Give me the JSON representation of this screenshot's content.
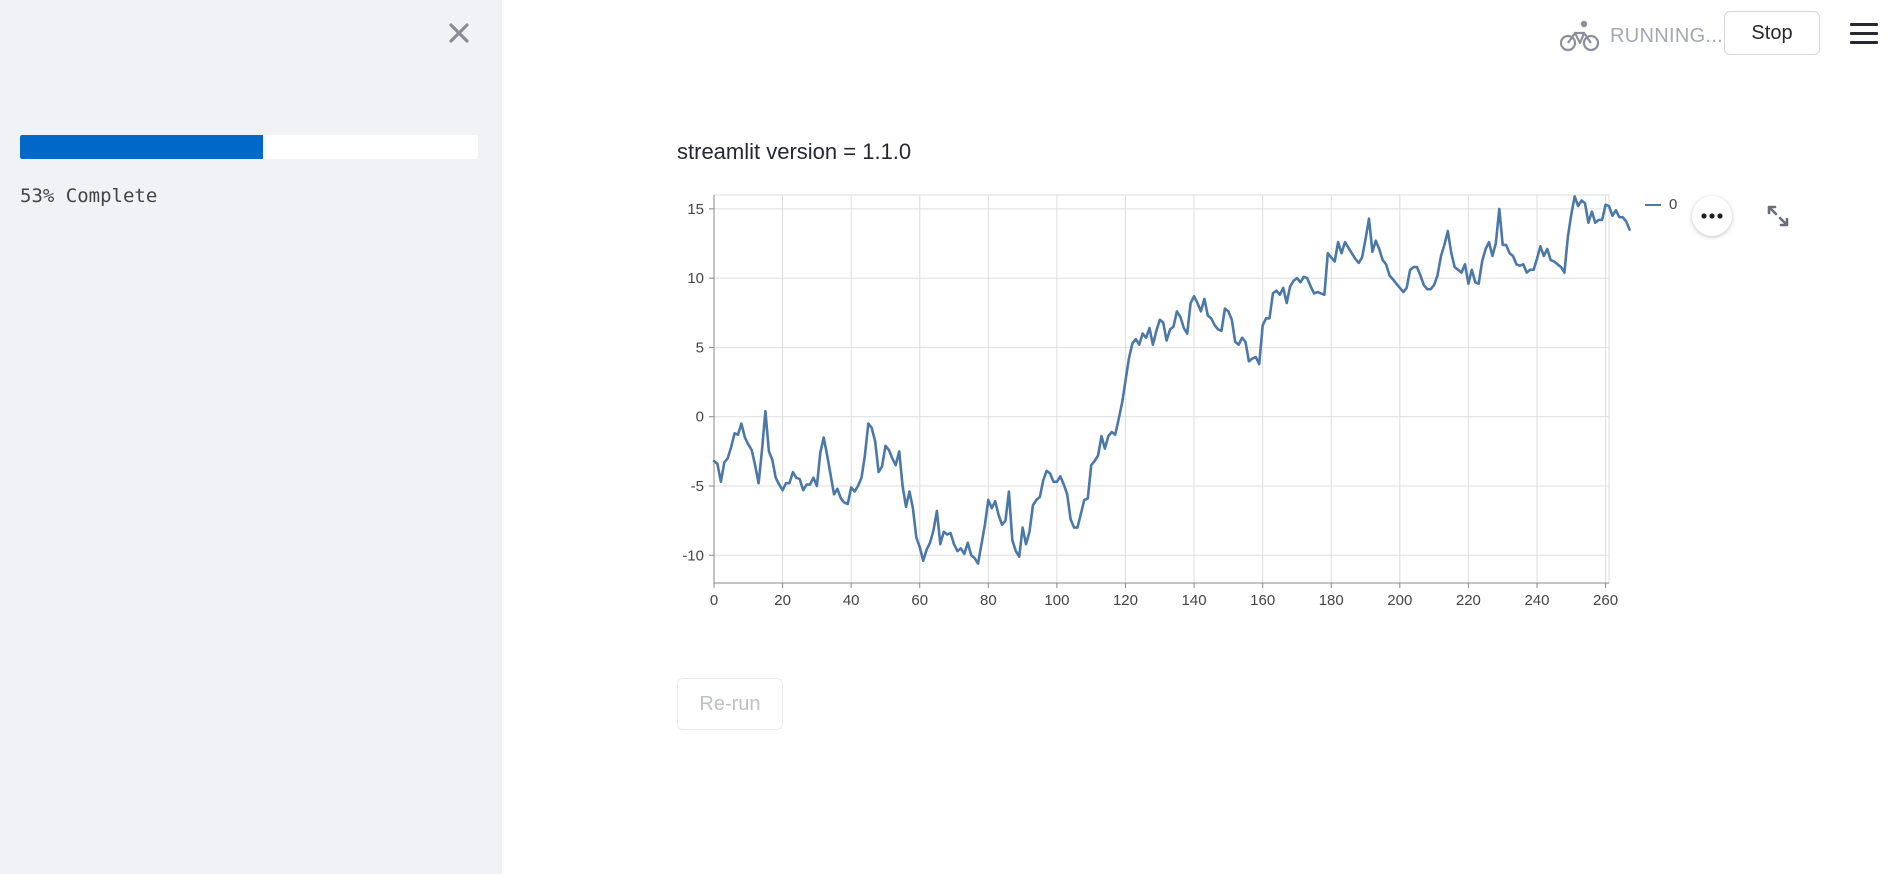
{
  "sidebar": {
    "close_icon": "close-icon",
    "progress": {
      "percent": 53,
      "label": "53% Complete",
      "fill_color": "#0068c9"
    }
  },
  "header": {
    "status_icon": "bicycle-icon",
    "status_text": "RUNNING...",
    "stop_label": "Stop",
    "menu_icon": "hamburger-menu-icon"
  },
  "main": {
    "version_text": "streamlit version = 1.1.0",
    "rerun_label": "Re-run",
    "chart_actions_icon": "more-horizontal-icon",
    "fullscreen_icon": "expand-icon"
  },
  "chart_data": {
    "type": "line",
    "title": "",
    "xlabel": "",
    "ylabel": "",
    "xlim": [
      0,
      261
    ],
    "ylim": [
      -12,
      16
    ],
    "x_ticks": [
      0,
      20,
      40,
      60,
      80,
      100,
      120,
      140,
      160,
      180,
      200,
      220,
      240,
      260
    ],
    "y_ticks": [
      -10,
      -5,
      0,
      5,
      10,
      15
    ],
    "grid": true,
    "legend_position": "top-right",
    "series": [
      {
        "name": "0",
        "color": "#4c78a8",
        "x_start": 0,
        "x_step": 1,
        "values": [
          -3.2,
          -3.4,
          -4.7,
          -3.3,
          -3,
          -2.2,
          -1.2,
          -1.3,
          -0.5,
          -1.5,
          -2,
          -2.4,
          -3.5,
          -4.8,
          -2.4,
          0.4,
          -2.5,
          -3.1,
          -4.4,
          -4.9,
          -5.3,
          -4.8,
          -4.8,
          -4,
          -4.4,
          -4.5,
          -5.3,
          -4.9,
          -4.9,
          -4.4,
          -5,
          -2.6,
          -1.5,
          -2.8,
          -4.2,
          -5.6,
          -5.2,
          -5.9,
          -6.2,
          -6.3,
          -5.1,
          -5.4,
          -5,
          -4.4,
          -2.8,
          -0.5,
          -0.8,
          -1.8,
          -4,
          -3.6,
          -2.1,
          -2.4,
          -3,
          -3.5,
          -2.5,
          -5,
          -6.5,
          -5.4,
          -6.6,
          -8.7,
          -9.4,
          -10.4,
          -9.6,
          -9.1,
          -8.2,
          -6.8,
          -9.2,
          -8.3,
          -8.5,
          -8.4,
          -9.2,
          -9.7,
          -9.5,
          -9.9,
          -9.1,
          -10,
          -10.2,
          -10.6,
          -9.2,
          -7.8,
          -6,
          -6.6,
          -6.1,
          -7.1,
          -7.8,
          -7.5,
          -5.4,
          -8.9,
          -9.7,
          -10.1,
          -8,
          -9.2,
          -8.3,
          -6.4,
          -6,
          -5.8,
          -4.6,
          -3.9,
          -4.1,
          -4.7,
          -4.7,
          -4.3,
          -4.9,
          -5.6,
          -7.4,
          -8,
          -8,
          -7,
          -6,
          -5.9,
          -3.5,
          -3.2,
          -2.8,
          -1.4,
          -2.3,
          -1.4,
          -1.1,
          -1.3,
          -0.2,
          1,
          2.6,
          4.2,
          5.3,
          5.6,
          5.2,
          6,
          5.7,
          6.4,
          5.2,
          6.2,
          7,
          6.8,
          5.5,
          6.3,
          6.5,
          7.6,
          7.2,
          6.4,
          6,
          8.2,
          8.7,
          8.2,
          7.6,
          8.5,
          7.3,
          7.1,
          6.6,
          6.3,
          6.2,
          7.8,
          7.6,
          7,
          5.4,
          5.2,
          5.7,
          5.4,
          4,
          4.2,
          4.3,
          3.8,
          6.6,
          7.1,
          7.1,
          8.9,
          9.1,
          8.8,
          9.3,
          8.2,
          9.4,
          9.8,
          10,
          9.7,
          10.1,
          10,
          9.4,
          8.9,
          9,
          8.9,
          8.8,
          11.8,
          11.5,
          11.2,
          12.6,
          11.8,
          12.6,
          12.2,
          11.8,
          11.4,
          11.1,
          11.5,
          12.8,
          14.3,
          11.9,
          12.7,
          12.1,
          11.3,
          11,
          10.2,
          9.9,
          9.6,
          9.3,
          9,
          9.3,
          10.6,
          10.8,
          10.8,
          10.2,
          9.5,
          9.2,
          9.2,
          9.5,
          10.2,
          11.6,
          12.4,
          13.4,
          11.8,
          10.8,
          10.6,
          10.4,
          11,
          9.6,
          10.6,
          9.7,
          9.6,
          11.2,
          12.1,
          12.6,
          11.6,
          12.5,
          15,
          12.4,
          12.4,
          11.8,
          11.6,
          11,
          10.9,
          11,
          10.4,
          10.6,
          10.6,
          11.4,
          12.3,
          11.6,
          12.1,
          11.3,
          11.2,
          11,
          10.8,
          10.4,
          13,
          14.6,
          15.9,
          15.2,
          15.6,
          15.4,
          14,
          14.8,
          14,
          14.2,
          14.2,
          15.3,
          15.2,
          14.5,
          14.9,
          14.4,
          14.4,
          14.1,
          13.5
        ]
      }
    ]
  }
}
